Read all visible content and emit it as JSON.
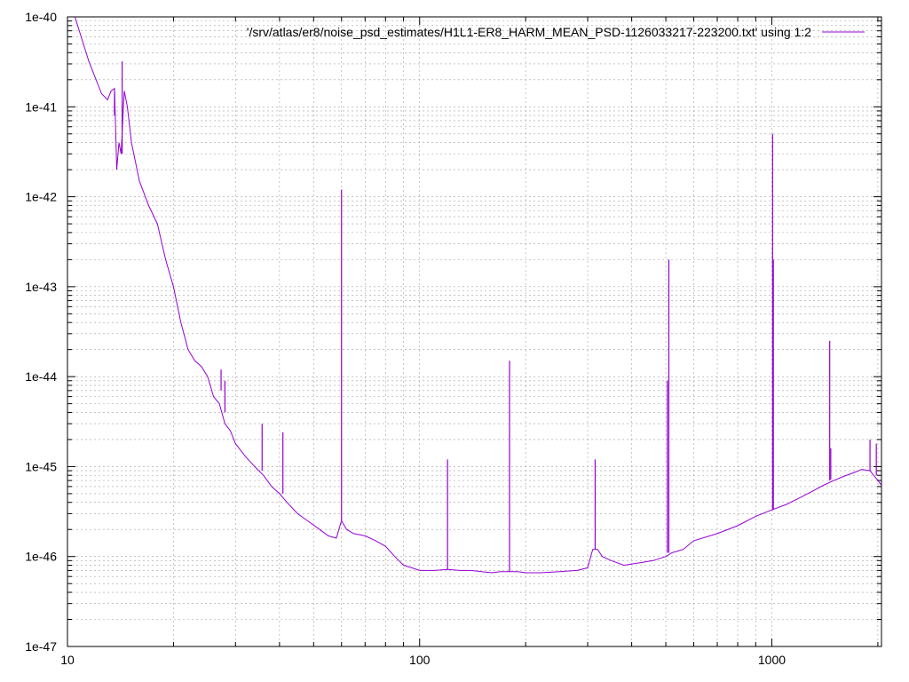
{
  "chart_data": {
    "type": "line",
    "title": "",
    "xlabel": "",
    "ylabel": "",
    "x_scale": "log",
    "y_scale": "log",
    "xlim": [
      10,
      2048
    ],
    "ylim": [
      1e-47,
      1e-40
    ],
    "grid": true,
    "legend_position": "top-right",
    "x_ticks": [
      {
        "value": 10,
        "label": "10"
      },
      {
        "value": 100,
        "label": "100"
      },
      {
        "value": 1000,
        "label": "1000"
      }
    ],
    "y_ticks": [
      {
        "value": 1e-40,
        "label": "1e-40"
      },
      {
        "value": 1e-41,
        "label": "1e-41"
      },
      {
        "value": 1e-42,
        "label": "1e-42"
      },
      {
        "value": 1e-43,
        "label": "1e-43"
      },
      {
        "value": 1e-44,
        "label": "1e-44"
      },
      {
        "value": 1e-45,
        "label": "1e-45"
      },
      {
        "value": 1e-46,
        "label": "1e-46"
      },
      {
        "value": 1e-47,
        "label": "1e-47"
      }
    ],
    "series": [
      {
        "name": "'/srv/atlas/er8/noise_psd_estimates/H1L1-ER8_HARM_MEAN_PSD-1126033217-223200.txt' using 1:2",
        "color": "#9400d3",
        "x": [
          10.5,
          11.5,
          12.5,
          13.0,
          13.3,
          13.6,
          13.8,
          14.0,
          14.2,
          14.5,
          14.8,
          15.2,
          16.0,
          17.0,
          18.0,
          19.0,
          20.0,
          21.0,
          22.0,
          23.0,
          24.0,
          25.0,
          26.0,
          27.0,
          28.0,
          29.0,
          30.0,
          32.0,
          34.0,
          36.0,
          38.0,
          40.0,
          42.0,
          45.0,
          48.0,
          52.0,
          55.0,
          58.0,
          60.0,
          62.0,
          65.0,
          70.0,
          75.0,
          80.0,
          85.0,
          90.0,
          95.0,
          100.0,
          110.0,
          120.0,
          130.0,
          140.0,
          150.0,
          160.0,
          170.0,
          180.0,
          190.0,
          200.0,
          220.0,
          250.0,
          280.0,
          300.0,
          310.0,
          320.0,
          330.0,
          350.0,
          380.0,
          420.0,
          460.0,
          500.0,
          520.0,
          560.0,
          600.0,
          700.0,
          800.0,
          900.0,
          1000.0,
          1100.0,
          1200.0,
          1300.0,
          1400.0,
          1500.0,
          1600.0,
          1700.0,
          1800.0,
          1900.0,
          2000.0,
          2048.0
        ],
        "y": [
          1e-40,
          3.2e-41,
          1.4e-41,
          1.2e-41,
          1.5e-41,
          1.6e-41,
          2e-42,
          4e-42,
          3e-42,
          1.5e-41,
          1e-41,
          4e-42,
          1.5e-42,
          8e-43,
          5e-43,
          2e-43,
          1e-43,
          4e-44,
          2e-44,
          1.5e-44,
          1.3e-44,
          1e-44,
          6e-45,
          5e-45,
          3e-45,
          2.5e-45,
          1.8e-45,
          1.3e-45,
          1e-45,
          8e-46,
          6e-46,
          5e-46,
          4e-46,
          3e-46,
          2.5e-46,
          2e-46,
          1.7e-46,
          1.6e-46,
          2.5e-46,
          2e-46,
          1.8e-46,
          1.7e-46,
          1.5e-46,
          1.3e-46,
          1e-46,
          8e-47,
          7.5e-47,
          7e-47,
          7e-47,
          7.2e-47,
          7e-47,
          7e-47,
          6.8e-47,
          6.6e-47,
          6.8e-47,
          6.8e-47,
          6.8e-47,
          6.6e-47,
          6.6e-47,
          6.8e-47,
          7e-47,
          7.5e-47,
          1.2e-46,
          1.2e-46,
          1e-46,
          9e-47,
          8e-47,
          8.5e-47,
          9e-47,
          1e-46,
          1.1e-46,
          1.2e-46,
          1.5e-46,
          1.8e-46,
          2.2e-46,
          2.8e-46,
          3.3e-46,
          3.8e-46,
          4.5e-46,
          5.3e-46,
          6.2e-46,
          7e-46,
          7.8e-46,
          8.5e-46,
          9.3e-46,
          9e-46,
          7e-46,
          6.2e-46
        ]
      }
    ],
    "lines": [
      {
        "x": 13.6,
        "y_base": 8e-42,
        "y_peak": 1.5e-41
      },
      {
        "x": 14.3,
        "y_base": 3e-42,
        "y_peak": 3.2e-41
      },
      {
        "x": 27.3,
        "y_base": 7e-45,
        "y_peak": 1.2e-44
      },
      {
        "x": 28.0,
        "y_base": 4e-45,
        "y_peak": 9e-45
      },
      {
        "x": 35.7,
        "y_base": 9e-46,
        "y_peak": 3e-45
      },
      {
        "x": 40.9,
        "y_base": 5e-46,
        "y_peak": 2.4e-45
      },
      {
        "x": 60.0,
        "y_base": 2.5e-46,
        "y_peak": 1.2e-42
      },
      {
        "x": 120.0,
        "y_base": 7.2e-47,
        "y_peak": 1.2e-45
      },
      {
        "x": 180.0,
        "y_base": 6.8e-47,
        "y_peak": 1.5e-44
      },
      {
        "x": 315.0,
        "y_base": 1.2e-46,
        "y_peak": 1.2e-45
      },
      {
        "x": 505.0,
        "y_base": 1.1e-46,
        "y_peak": 9e-45
      },
      {
        "x": 510.0,
        "y_base": 1.1e-46,
        "y_peak": 2e-43
      },
      {
        "x": 1005.0,
        "y_base": 3.3e-46,
        "y_peak": 5e-42
      },
      {
        "x": 1010.0,
        "y_base": 3.3e-46,
        "y_peak": 2e-43
      },
      {
        "x": 1460.0,
        "y_base": 7e-46,
        "y_peak": 2.5e-44
      },
      {
        "x": 1470.0,
        "y_base": 7.2e-46,
        "y_peak": 1.6e-45
      },
      {
        "x": 1900.0,
        "y_base": 9e-46,
        "y_peak": 2e-45
      },
      {
        "x": 1980.0,
        "y_base": 8e-46,
        "y_peak": 1.8e-45
      }
    ]
  }
}
